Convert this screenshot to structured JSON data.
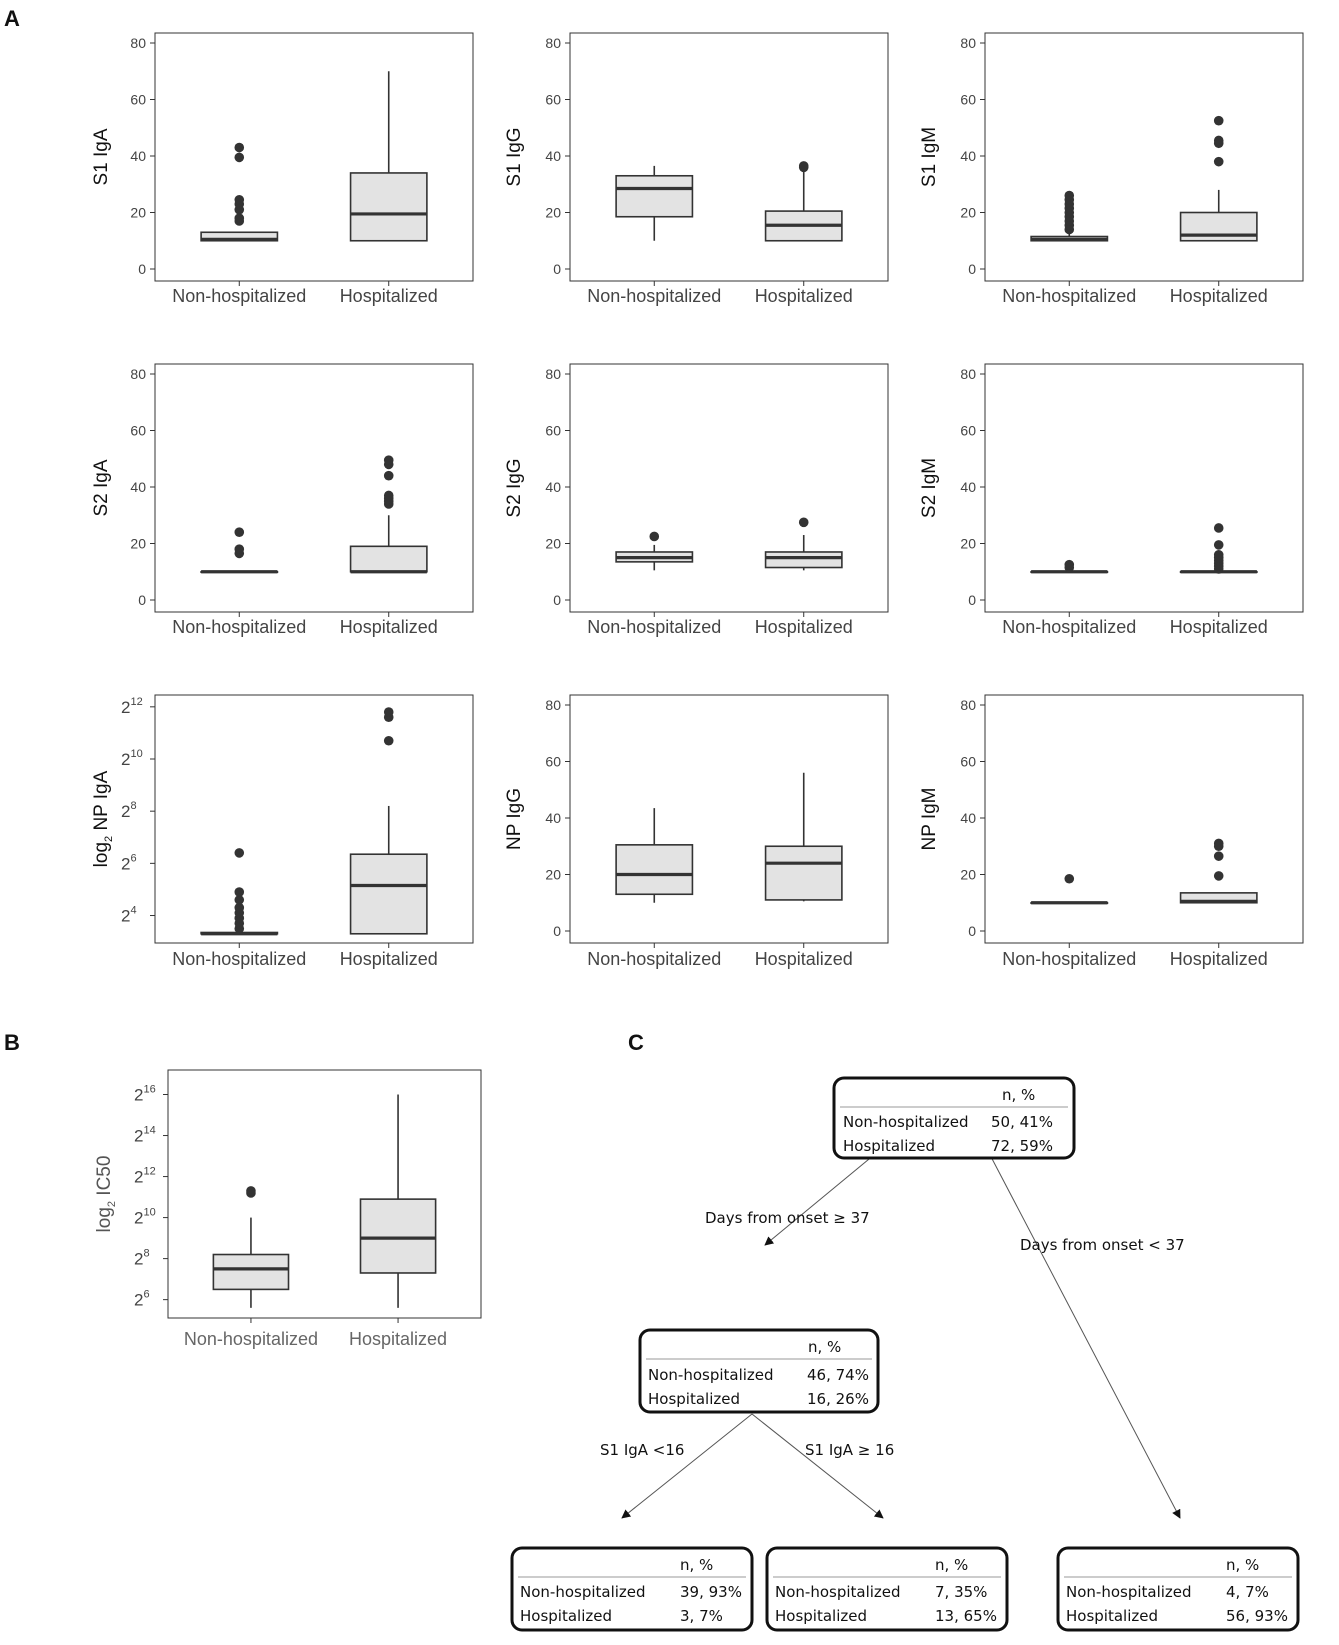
{
  "panel_labels": {
    "a": "A",
    "b": "B",
    "c": "C"
  },
  "colors": {
    "box_fill": "#e3e3e3",
    "box_stroke": "#333333",
    "median": "#333333",
    "frame": "#333333",
    "outlier": "#333333",
    "tick_text": "#444444"
  },
  "chart_data": [
    {
      "id": "s1iga",
      "type": "box",
      "ylabel": "S1 IgA",
      "scale": "linear",
      "ylim": [
        0,
        80
      ],
      "yticks": [
        "0",
        "20",
        "40",
        "60",
        "80"
      ],
      "categories": [
        "Non-hospitalized",
        "Hospitalized"
      ],
      "boxes": [
        {
          "low": 10,
          "q1": 10,
          "median": 10.5,
          "q3": 13,
          "high": 13,
          "outliers": [
            17,
            18,
            21,
            23,
            24.5,
            39.5,
            43
          ]
        },
        {
          "low": 10,
          "q1": 10,
          "median": 19.5,
          "q3": 34,
          "high": 70,
          "outliers": []
        }
      ]
    },
    {
      "id": "s1igg",
      "type": "box",
      "ylabel": "S1 IgG",
      "scale": "linear",
      "ylim": [
        0,
        80
      ],
      "yticks": [
        "0",
        "20",
        "40",
        "60",
        "80"
      ],
      "categories": [
        "Non-hospitalized",
        "Hospitalized"
      ],
      "boxes": [
        {
          "low": 10,
          "q1": 18.5,
          "median": 28.5,
          "q3": 33,
          "high": 36.5,
          "outliers": []
        },
        {
          "low": 10,
          "q1": 10,
          "median": 15.5,
          "q3": 20.5,
          "high": 36,
          "outliers": [
            36,
            36.5
          ]
        }
      ]
    },
    {
      "id": "s1igm",
      "type": "box",
      "ylabel": "S1 IgM",
      "scale": "linear",
      "ylim": [
        0,
        80
      ],
      "yticks": [
        "0",
        "20",
        "40",
        "60",
        "80"
      ],
      "categories": [
        "Non-hospitalized",
        "Hospitalized"
      ],
      "boxes": [
        {
          "low": 10,
          "q1": 10,
          "median": 10.5,
          "q3": 11.5,
          "high": 13.5,
          "outliers": [
            14,
            15.5,
            17,
            18.5,
            20,
            21.5,
            23,
            24.5,
            26
          ]
        },
        {
          "low": 10,
          "q1": 10,
          "median": 12,
          "q3": 20,
          "high": 28,
          "outliers": [
            38,
            44.5,
            45.5,
            52.5
          ]
        }
      ]
    },
    {
      "id": "s2iga",
      "type": "box",
      "ylabel": "S2 IgA",
      "scale": "linear",
      "ylim": [
        0,
        80
      ],
      "yticks": [
        "0",
        "20",
        "40",
        "60",
        "80"
      ],
      "categories": [
        "Non-hospitalized",
        "Hospitalized"
      ],
      "boxes": [
        {
          "low": 10,
          "q1": 10,
          "median": 10,
          "q3": 10,
          "high": 10,
          "outliers": [
            16.5,
            18,
            24
          ]
        },
        {
          "low": 10,
          "q1": 10,
          "median": 10,
          "q3": 19,
          "high": 30,
          "outliers": [
            34,
            35,
            36,
            37,
            44,
            48,
            49.5
          ]
        }
      ]
    },
    {
      "id": "s2igg",
      "type": "box",
      "ylabel": "S2 IgG",
      "scale": "linear",
      "ylim": [
        0,
        80
      ],
      "yticks": [
        "0",
        "20",
        "40",
        "60",
        "80"
      ],
      "categories": [
        "Non-hospitalized",
        "Hospitalized"
      ],
      "boxes": [
        {
          "low": 10.5,
          "q1": 13.5,
          "median": 15,
          "q3": 17,
          "high": 19.5,
          "outliers": [
            22.5
          ]
        },
        {
          "low": 10.5,
          "q1": 11.5,
          "median": 15,
          "q3": 17,
          "high": 23,
          "outliers": [
            27.5
          ]
        }
      ]
    },
    {
      "id": "s2igm",
      "type": "box",
      "ylabel": "S2 IgM",
      "scale": "linear",
      "ylim": [
        0,
        80
      ],
      "yticks": [
        "0",
        "20",
        "40",
        "60",
        "80"
      ],
      "categories": [
        "Non-hospitalized",
        "Hospitalized"
      ],
      "boxes": [
        {
          "low": 10,
          "q1": 10,
          "median": 10,
          "q3": 10,
          "high": 10,
          "outliers": [
            11.5,
            12.5
          ]
        },
        {
          "low": 10,
          "q1": 10,
          "median": 10,
          "q3": 10,
          "high": 10,
          "outliers": [
            11,
            12,
            13,
            14,
            15,
            16,
            19.5,
            25.5
          ]
        }
      ]
    },
    {
      "id": "npiga",
      "type": "box",
      "ylabel": "log",
      "ylabel_sub": "2",
      "ylabel_rest": " NP IgA",
      "scale": "log2",
      "ylim": [
        3.1,
        12.3
      ],
      "yticks_exp": [
        "4",
        "6",
        "8",
        "10",
        "12"
      ],
      "categories": [
        "Non-hospitalized",
        "Hospitalized"
      ],
      "boxes": [
        {
          "low": 3.3,
          "q1": 3.3,
          "median": 3.3,
          "q3": 3.35,
          "high": 3.4,
          "outliers": [
            3.5,
            3.7,
            3.9,
            4.1,
            4.3,
            4.6,
            4.9,
            6.4
          ]
        },
        {
          "low": 3.3,
          "q1": 3.3,
          "median": 5.15,
          "q3": 6.35,
          "high": 8.2,
          "outliers": [
            10.7,
            11.6,
            11.8
          ]
        }
      ]
    },
    {
      "id": "npigg",
      "type": "box",
      "ylabel": "NP IgG",
      "scale": "linear",
      "ylim": [
        0,
        80
      ],
      "yticks": [
        "0",
        "20",
        "40",
        "60",
        "80"
      ],
      "categories": [
        "Non-hospitalized",
        "Hospitalized"
      ],
      "boxes": [
        {
          "low": 10,
          "q1": 13,
          "median": 20,
          "q3": 30.5,
          "high": 43.5,
          "outliers": []
        },
        {
          "low": 10.5,
          "q1": 11,
          "median": 24,
          "q3": 30,
          "high": 56,
          "outliers": []
        }
      ]
    },
    {
      "id": "npigm",
      "type": "box",
      "ylabel": "NP IgM",
      "scale": "linear",
      "ylim": [
        0,
        80
      ],
      "yticks": [
        "0",
        "20",
        "40",
        "60",
        "80"
      ],
      "categories": [
        "Non-hospitalized",
        "Hospitalized"
      ],
      "boxes": [
        {
          "low": 10,
          "q1": 10,
          "median": 10,
          "q3": 10,
          "high": 10,
          "outliers": [
            18.5
          ]
        },
        {
          "low": 10,
          "q1": 10,
          "median": 10.5,
          "q3": 13.5,
          "high": 13.5,
          "outliers": [
            19.5,
            26.5,
            30,
            31
          ]
        }
      ]
    },
    {
      "id": "ic50",
      "type": "box",
      "ylabel": "log",
      "ylabel_sub": "2",
      "ylabel_rest": " IC50",
      "scale": "log2",
      "ylim": [
        5.3,
        17.0
      ],
      "yticks_exp": [
        "6",
        "8",
        "10",
        "12",
        "14",
        "16"
      ],
      "categories": [
        "Non-hospitalized",
        "Hospitalized"
      ],
      "boxes": [
        {
          "low": 5.6,
          "q1": 6.5,
          "median": 7.5,
          "q3": 8.2,
          "high": 10,
          "outliers": [
            11.2,
            11.3
          ]
        },
        {
          "low": 5.6,
          "q1": 7.3,
          "median": 9.0,
          "q3": 10.9,
          "high": 16,
          "outliers": []
        }
      ]
    }
  ],
  "tree": {
    "header": "n,  %",
    "row_labels": [
      "Non-hospitalized",
      "Hospitalized"
    ],
    "root": {
      "non": "50, 41%",
      "hosp": "72, 59%"
    },
    "mid": {
      "non": "46, 74%",
      "hosp": "16, 26%"
    },
    "leaf_left": {
      "non": "39, 93%",
      "hosp": "3, 7%"
    },
    "leaf_mid": {
      "non": "7, 35%",
      "hosp": "13, 65%"
    },
    "leaf_right": {
      "non": "4, 7%",
      "hosp": "56, 93%"
    },
    "edges": {
      "days_ge": "Days from onset ≥ 37",
      "days_lt": "Days from onset < 37",
      "s1iga_lt": "S1 IgA <16",
      "s1iga_ge": "S1 IgA ≥ 16"
    }
  }
}
